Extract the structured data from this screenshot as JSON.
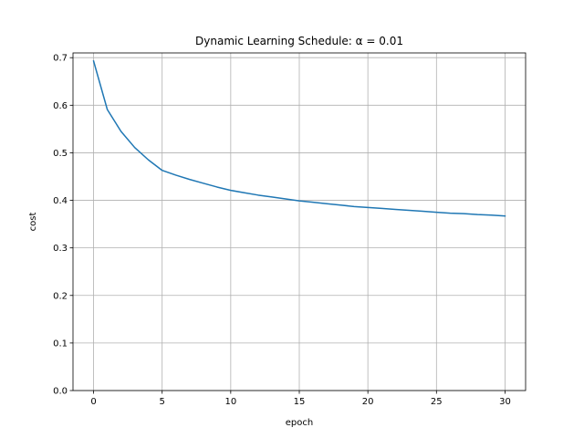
{
  "chart_data": {
    "type": "line",
    "title": "Dynamic Learning Schedule: α = 0.01",
    "xlabel": "epoch",
    "ylabel": "cost",
    "xlim": [
      -1.5,
      31.5
    ],
    "ylim": [
      0.0,
      0.71
    ],
    "xticks": [
      0,
      5,
      10,
      15,
      20,
      25,
      30
    ],
    "yticks": [
      0.0,
      0.1,
      0.2,
      0.3,
      0.4,
      0.5,
      0.6,
      0.7
    ],
    "xtick_labels": [
      "0",
      "5",
      "10",
      "15",
      "20",
      "25",
      "30"
    ],
    "ytick_labels": [
      "0.0",
      "0.1",
      "0.2",
      "0.3",
      "0.4",
      "0.5",
      "0.6",
      "0.7"
    ],
    "grid": true,
    "legend": false,
    "series": [
      {
        "color": "#1f77b4",
        "x": [
          0,
          1,
          2,
          3,
          4,
          5,
          6,
          7,
          8,
          9,
          10,
          11,
          12,
          13,
          14,
          15,
          16,
          17,
          18,
          19,
          20,
          21,
          22,
          23,
          24,
          25,
          26,
          27,
          28,
          29,
          30
        ],
        "y": [
          0.693,
          0.591,
          0.545,
          0.511,
          0.485,
          0.463,
          0.453,
          0.444,
          0.436,
          0.428,
          0.421,
          0.416,
          0.411,
          0.407,
          0.403,
          0.399,
          0.396,
          0.393,
          0.39,
          0.387,
          0.385,
          0.383,
          0.381,
          0.379,
          0.377,
          0.375,
          0.373,
          0.372,
          0.37,
          0.369,
          0.367
        ]
      }
    ]
  }
}
